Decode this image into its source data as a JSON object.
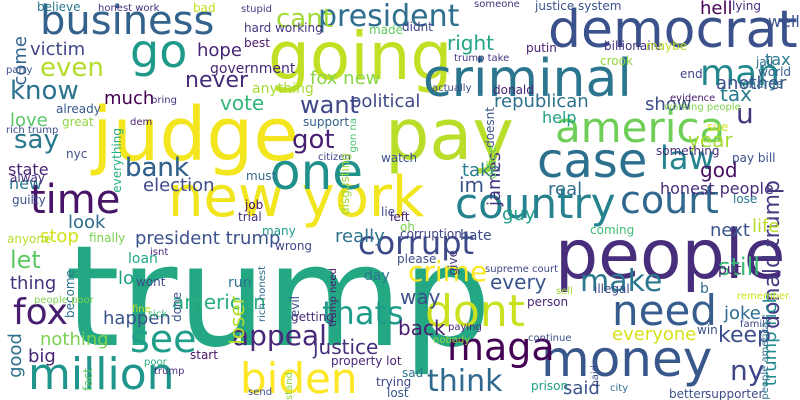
{
  "words": [
    {
      "text": "trump",
      "color": "#24a884"
    },
    {
      "text": "judge",
      "color": "#f3e61e"
    },
    {
      "text": "going",
      "color": "#c2df23"
    },
    {
      "text": "pay",
      "color": "#b8de29"
    },
    {
      "text": "people",
      "color": "#472d7b"
    },
    {
      "text": "new york",
      "color": "#f1e51d"
    },
    {
      "text": "criminal",
      "color": "#2b758e"
    },
    {
      "text": "democrat",
      "color": "#3b518b"
    },
    {
      "text": "money",
      "color": "#38588c"
    },
    {
      "text": "one",
      "color": "#21918c"
    },
    {
      "text": "case",
      "color": "#2d708e"
    },
    {
      "text": "go",
      "color": "#1f9a8a"
    },
    {
      "text": "business",
      "color": "#33638d"
    },
    {
      "text": "america",
      "color": "#6ece58"
    },
    {
      "text": "country",
      "color": "#26828e"
    },
    {
      "text": "court",
      "color": "#31688e"
    },
    {
      "text": "dont",
      "color": "#cae11f"
    },
    {
      "text": "need",
      "color": "#365d8d"
    },
    {
      "text": "time",
      "color": "#481467"
    },
    {
      "text": "biden",
      "color": "#fde725"
    },
    {
      "text": "million",
      "color": "#1f958b"
    },
    {
      "text": "maga",
      "color": "#440154"
    },
    {
      "text": "man",
      "color": "#23888e"
    },
    {
      "text": "president",
      "color": "#2e6e8e"
    },
    {
      "text": "corrupt",
      "color": "#3e4989"
    },
    {
      "text": "fox",
      "color": "#481f70"
    },
    {
      "text": "see",
      "color": "#1f9e89"
    },
    {
      "text": "law",
      "color": "#25858e"
    },
    {
      "text": "appeal",
      "color": "#482878"
    },
    {
      "text": "thats",
      "color": "#1e9c89"
    },
    {
      "text": "make",
      "color": "#2a788e"
    },
    {
      "text": "think",
      "color": "#30698e"
    },
    {
      "text": "crime",
      "color": "#fde725"
    },
    {
      "text": "ny",
      "color": "#3f4788"
    },
    {
      "text": "donald trump",
      "color": "#443a83"
    },
    {
      "text": "trump rich",
      "color": "#238a8d"
    },
    {
      "text": "u",
      "color": "#46337e"
    },
    {
      "text": "cant",
      "color": "#a2da37"
    },
    {
      "text": "even",
      "color": "#b2dd2d"
    },
    {
      "text": "know",
      "color": "#2c728e"
    },
    {
      "text": "say",
      "color": "#2a788e"
    },
    {
      "text": "bank",
      "color": "#33638d"
    },
    {
      "text": "got",
      "color": "#482071"
    },
    {
      "text": "want",
      "color": "#3f4788"
    },
    {
      "text": "never",
      "color": "#472c7a"
    },
    {
      "text": "victim",
      "color": "#404688"
    },
    {
      "text": "hell",
      "color": "#440154"
    },
    {
      "text": "right",
      "color": "#21a585"
    },
    {
      "text": "tax",
      "color": "#297b8e"
    },
    {
      "text": "year",
      "color": "#a5db36"
    },
    {
      "text": "god",
      "color": "#471063"
    },
    {
      "text": "im",
      "color": "#3a538b"
    },
    {
      "text": "let",
      "color": "#5ec962"
    },
    {
      "text": "still",
      "color": "#38b977"
    },
    {
      "text": "keep",
      "color": "#3c4f8a"
    },
    {
      "text": "justice",
      "color": "#462f7c"
    },
    {
      "text": "american",
      "color": "#29af7f"
    },
    {
      "text": "loser",
      "color": "#b5de2b"
    },
    {
      "text": "way",
      "color": "#3b518b"
    },
    {
      "text": "back",
      "color": "#481d6f"
    },
    {
      "text": "every",
      "color": "#39558c"
    },
    {
      "text": "fox new",
      "color": "#8bd646"
    },
    {
      "text": "political",
      "color": "#3f4889"
    },
    {
      "text": "republican",
      "color": "#2d718e"
    },
    {
      "text": "vote",
      "color": "#35b779"
    },
    {
      "text": "much",
      "color": "#440154"
    },
    {
      "text": "love",
      "color": "#58c765"
    },
    {
      "text": "bank",
      "color": "#33638d"
    },
    {
      "text": "president trump",
      "color": "#3b528b"
    },
    {
      "text": "stop",
      "color": "#d0e11c"
    },
    {
      "text": "thing",
      "color": "#46327e"
    },
    {
      "text": "lol",
      "color": "#1fa187"
    },
    {
      "text": "happen",
      "color": "#3a548c"
    },
    {
      "text": "look",
      "color": "#2e6d8e"
    },
    {
      "text": "nothing",
      "color": "#7ad151"
    },
    {
      "text": "big",
      "color": "#482475"
    },
    {
      "text": "good",
      "color": "#2d708e"
    },
    {
      "text": "election",
      "color": "#3e4a89"
    },
    {
      "text": "state",
      "color": "#482475"
    },
    {
      "text": "new",
      "color": "#2a788e"
    },
    {
      "text": "take",
      "color": "#287d8e"
    },
    {
      "text": "guy",
      "color": "#1f9f88"
    },
    {
      "text": "real",
      "color": "#2e6f8e"
    },
    {
      "text": "honest people",
      "color": "#472d7b"
    },
    {
      "text": "life",
      "color": "#bade28"
    },
    {
      "text": "next",
      "color": "#3a548c"
    },
    {
      "text": "joke",
      "color": "#2f6b8e"
    },
    {
      "text": "everyone",
      "color": "#d8e219"
    },
    {
      "text": "said",
      "color": "#3b528b"
    },
    {
      "text": "really",
      "color": "#2c738e"
    },
    {
      "text": "show",
      "color": "#3d4e8a"
    },
    {
      "text": "another",
      "color": "#3b528b"
    },
    {
      "text": "help",
      "color": "#1fa088"
    },
    {
      "text": "james",
      "color": "#463480"
    },
    {
      "text": "hope",
      "color": "#482576"
    },
    {
      "text": "come",
      "color": "#33638d"
    },
    {
      "text": "government",
      "color": "#482677"
    },
    {
      "text": "anything",
      "color": "#a8db34"
    },
    {
      "text": "tax",
      "color": "#297b8e"
    },
    {
      "text": "well",
      "color": "#3a548c"
    },
    {
      "text": "hard working",
      "color": "#453781"
    },
    {
      "text": "best",
      "color": "#481668"
    },
    {
      "text": "made",
      "color": "#63cb5f"
    },
    {
      "text": "didnt",
      "color": "#404588"
    },
    {
      "text": "putin",
      "color": "#482173"
    },
    {
      "text": "crook",
      "color": "#95d840"
    },
    {
      "text": "billionaire",
      "color": "#46327e"
    },
    {
      "text": "maybe",
      "color": "#bddf26"
    },
    {
      "text": "jail",
      "color": "#2d708e"
    },
    {
      "text": "end",
      "color": "#3f4788"
    },
    {
      "text": "world",
      "color": "#355f8d"
    },
    {
      "text": "charge",
      "color": "#30698e"
    },
    {
      "text": "evidence",
      "color": "#481a6c"
    },
    {
      "text": "working people",
      "color": "#7fd34e"
    },
    {
      "text": "donald",
      "color": "#482878"
    },
    {
      "text": "party",
      "color": "#3b528b"
    },
    {
      "text": "already",
      "color": "#38598c"
    },
    {
      "text": "great",
      "color": "#8fd744"
    },
    {
      "text": "rich trump",
      "color": "#3e4c8a"
    },
    {
      "text": "nyc",
      "color": "#3c508b"
    },
    {
      "text": "dem",
      "color": "#481c6e"
    },
    {
      "text": "bring",
      "color": "#46337e"
    },
    {
      "text": "support",
      "color": "#35608d"
    },
    {
      "text": "citizen",
      "color": "#3f4889"
    },
    {
      "text": "gon na",
      "color": "#4ac16d"
    },
    {
      "text": "disgusting",
      "color": "#a0da39"
    },
    {
      "text": "watch",
      "color": "#3b528b"
    },
    {
      "text": "doesnt",
      "color": "#39568c"
    },
    {
      "text": "office",
      "color": "#6ccd5a"
    },
    {
      "text": "something",
      "color": "#472f7d"
    },
    {
      "text": "pay bill",
      "color": "#3b518b"
    },
    {
      "text": "sue",
      "color": "#d2e21b"
    },
    {
      "text": "everything",
      "color": "#25ac82"
    },
    {
      "text": "must",
      "color": "#30698e"
    },
    {
      "text": "alway",
      "color": "#46307e"
    },
    {
      "text": "guilty",
      "color": "#3b518b"
    },
    {
      "text": "anyone",
      "color": "#b5de2b"
    },
    {
      "text": "finally",
      "color": "#7ad151"
    },
    {
      "text": "job",
      "color": "#471063"
    },
    {
      "text": "trial",
      "color": "#472f7d"
    },
    {
      "text": "many",
      "color": "#1f9a8a"
    },
    {
      "text": "wrong",
      "color": "#3f4889"
    },
    {
      "text": "lie",
      "color": "#3e4989"
    },
    {
      "text": "left",
      "color": "#482173"
    },
    {
      "text": "oh",
      "color": "#7ad151"
    },
    {
      "text": "corruption",
      "color": "#404688"
    },
    {
      "text": "hate",
      "color": "#3d4d8a"
    },
    {
      "text": "give",
      "color": "#46327e"
    },
    {
      "text": "coming",
      "color": "#3fbc73"
    },
    {
      "text": "lose",
      "color": "#2a788e"
    },
    {
      "text": "loan",
      "color": "#22a785"
    },
    {
      "text": "isnt",
      "color": "#482979"
    },
    {
      "text": "wont",
      "color": "#3e4a89"
    },
    {
      "text": "become",
      "color": "#2c738e"
    },
    {
      "text": "people poor",
      "color": "#7fd34e"
    },
    {
      "text": "fine",
      "color": "#bddf26"
    },
    {
      "text": "done",
      "color": "#3b528b"
    },
    {
      "text": "run",
      "color": "#2c728e"
    },
    {
      "text": "evil",
      "color": "#3e4a89"
    },
    {
      "text": "rich honest",
      "color": "#2f6c8e"
    },
    {
      "text": "trump need",
      "color": "#481769"
    },
    {
      "text": "please",
      "color": "#3d4e8a"
    },
    {
      "text": "day",
      "color": "#2a778e"
    },
    {
      "text": "supreme court",
      "color": "#3f4788"
    },
    {
      "text": "person",
      "color": "#482878"
    },
    {
      "text": "sell",
      "color": "#a5db36"
    },
    {
      "text": "illegal",
      "color": "#3e4989"
    },
    {
      "text": "b",
      "color": "#2e6f8e"
    },
    {
      "text": "put",
      "color": "#481c6e"
    },
    {
      "text": "win",
      "color": "#3b518b"
    },
    {
      "text": "remember",
      "color": "#d0e11c"
    },
    {
      "text": "family",
      "color": "#3e4a89"
    },
    {
      "text": "people america",
      "color": "#2d718e"
    },
    {
      "text": "getting",
      "color": "#472c7a"
    },
    {
      "text": "sick",
      "color": "#3ebc74"
    },
    {
      "text": "property lot",
      "color": "#482576"
    },
    {
      "text": "nobody",
      "color": "#93d741"
    },
    {
      "text": "paying",
      "color": "#482777"
    },
    {
      "text": "continue",
      "color": "#3c4f8a"
    },
    {
      "text": "fact",
      "color": "#5ec962"
    },
    {
      "text": "poor",
      "color": "#28ae80"
    },
    {
      "text": "trump",
      "color": "#46307e"
    },
    {
      "text": "send",
      "color": "#3d4d8a"
    },
    {
      "text": "stand",
      "color": "#8fd744"
    },
    {
      "text": "start",
      "color": "#481467"
    },
    {
      "text": "trying",
      "color": "#3e4989"
    },
    {
      "text": "lost",
      "color": "#3b528b"
    },
    {
      "text": "sad",
      "color": "#2c738e"
    },
    {
      "text": "prison",
      "color": "#1fa088"
    },
    {
      "text": "paid",
      "color": "#3e4c8a"
    },
    {
      "text": "city",
      "color": "#2c728e"
    },
    {
      "text": "better",
      "color": "#3b528b"
    },
    {
      "text": "supporter",
      "color": "#3e4a89"
    },
    {
      "text": "believe",
      "color": "#2a788e"
    },
    {
      "text": "honest work",
      "color": "#46307e"
    },
    {
      "text": "bad",
      "color": "#c2df23"
    },
    {
      "text": "stupid",
      "color": "#453882"
    },
    {
      "text": "someone",
      "color": "#46327e"
    },
    {
      "text": "justice system",
      "color": "#3b528b"
    },
    {
      "text": "lying",
      "color": "#472e7c"
    },
    {
      "text": "trump take",
      "color": "#463480"
    },
    {
      "text": "actually",
      "color": "#3e4989"
    }
  ]
}
